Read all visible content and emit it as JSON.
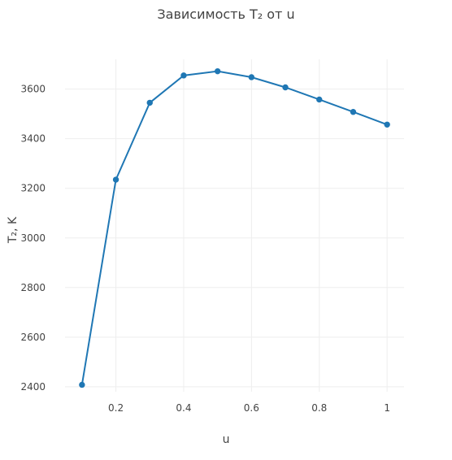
{
  "chart_data": {
    "type": "line",
    "title": "Зависимость T₂ от u",
    "xlabel": "u",
    "ylabel": "T₂, K",
    "x": [
      0.1,
      0.2,
      0.3,
      0.4,
      0.5,
      0.6,
      0.7,
      0.8,
      0.9,
      1.0
    ],
    "series": [
      {
        "values": [
          2408,
          3235,
          3545,
          3655,
          3672,
          3648,
          3607,
          3558,
          3508,
          3457
        ]
      }
    ],
    "xlim": [
      0.05,
      1.05
    ],
    "ylim": [
      2380,
      3720
    ],
    "xticks": [
      0.2,
      0.4,
      0.6,
      0.8,
      1
    ],
    "xtick_labels": [
      "0.2",
      "0.4",
      "0.6",
      "0.8",
      "1"
    ],
    "yticks": [
      2400,
      2600,
      2800,
      3000,
      3200,
      3400,
      3600
    ],
    "ytick_labels": [
      "2400",
      "2600",
      "2800",
      "3000",
      "3200",
      "3400",
      "3600"
    ],
    "grid": true,
    "legend": "none",
    "colors": {
      "series": "#1f77b4",
      "grid": "#eeeeee",
      "text": "#444444"
    }
  }
}
